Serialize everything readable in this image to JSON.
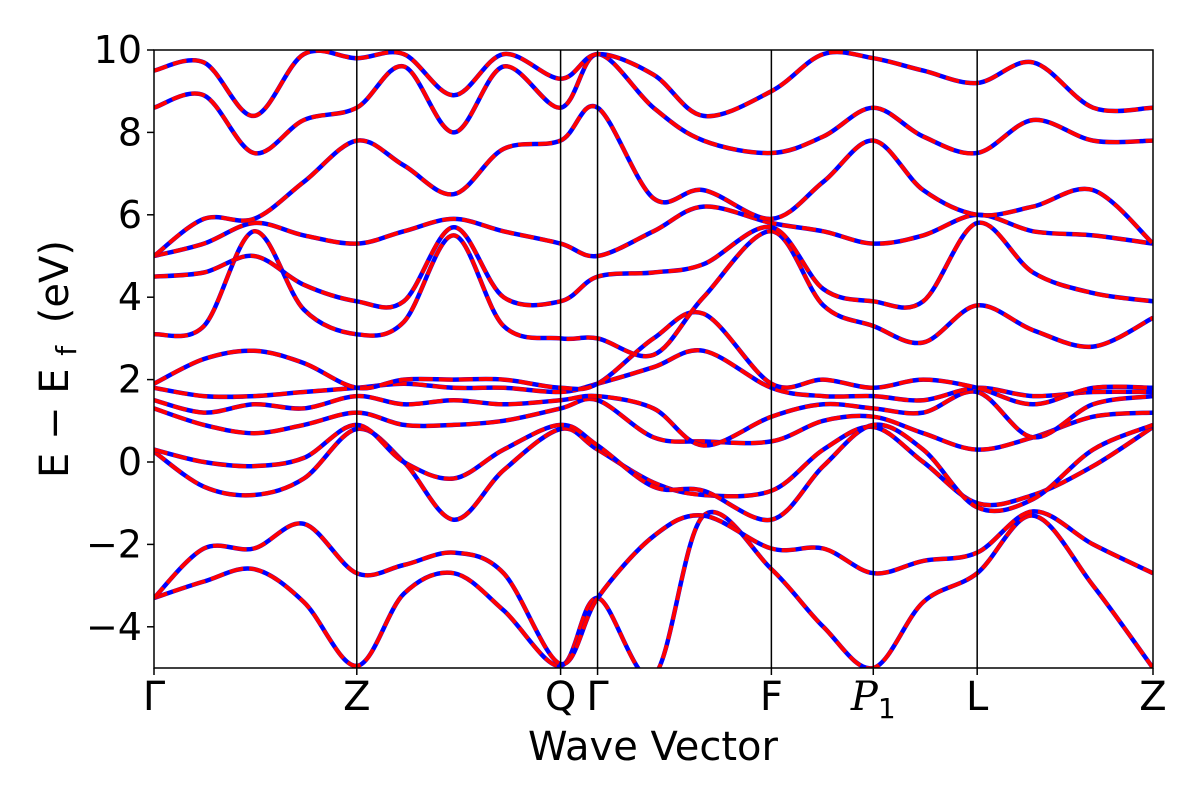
{
  "chart_data": {
    "type": "line",
    "title": "",
    "xlabel": "Wave Vector",
    "ylabel": "E − E",
    "ylabel_sub": "f",
    "ylabel_unit": "(eV)",
    "ylim": [
      -5,
      10
    ],
    "yticks": [
      -4,
      -2,
      0,
      2,
      4,
      6,
      8,
      10
    ],
    "ytick_labels": [
      "−4",
      "−2",
      "0",
      "2",
      "4",
      "6",
      "8",
      "10"
    ],
    "xlim": [
      0,
      10
    ],
    "high_symmetry_points": [
      {
        "label": "Γ",
        "sub": "",
        "x": 0.0
      },
      {
        "label": "Z",
        "sub": "",
        "x": 2.03
      },
      {
        "label": "Q",
        "sub": "",
        "x": 4.07
      },
      {
        "label": "Γ",
        "sub": "",
        "x": 4.44
      },
      {
        "label": "F",
        "sub": "",
        "x": 6.18
      },
      {
        "label": "P",
        "sub": "1",
        "x": 7.2
      },
      {
        "label": "L",
        "sub": "",
        "x": 8.24
      },
      {
        "label": "Z",
        "sub": "",
        "x": 10.0
      }
    ],
    "grid": false,
    "series_styles": [
      {
        "color": "#0000ff",
        "dash": "solid"
      },
      {
        "color": "#ff0000",
        "dash": "dashed"
      }
    ],
    "bands": [
      {
        "x": [
          0,
          0.5,
          1.0,
          1.5,
          2.03,
          2.5,
          3.0,
          3.5,
          4.07,
          4.44,
          5.0,
          5.5,
          6.18,
          6.7,
          7.2,
          7.7,
          8.24,
          8.8,
          9.4,
          10.0
        ],
        "y": [
          -3.3,
          -2.9,
          -2.6,
          -3.4,
          -4.95,
          -3.2,
          -2.7,
          -3.6,
          -4.95,
          -3.3,
          -5.2,
          -1.3,
          -2.6,
          -4.0,
          -5.0,
          -3.4,
          -2.7,
          -1.3,
          -3.0,
          -5.0
        ]
      },
      {
        "x": [
          0,
          0.5,
          1.0,
          1.5,
          2.03,
          2.5,
          3.0,
          3.5,
          4.07,
          4.44,
          5.0,
          5.5,
          6.18,
          6.7,
          7.2,
          7.7,
          8.24,
          8.8,
          9.4,
          10.0
        ],
        "y": [
          -3.3,
          -2.1,
          -2.1,
          -1.5,
          -2.7,
          -2.5,
          -2.2,
          -2.7,
          -4.9,
          -3.3,
          -1.8,
          -1.3,
          -2.1,
          -2.1,
          -2.7,
          -2.4,
          -2.2,
          -1.2,
          -2.0,
          -2.7
        ]
      },
      {
        "x": [
          0,
          0.5,
          1.0,
          1.5,
          2.03,
          2.5,
          3.0,
          3.5,
          4.07,
          4.44,
          5.0,
          5.5,
          6.18,
          6.7,
          7.2,
          7.7,
          8.24,
          8.8,
          9.4,
          10.0
        ],
        "y": [
          0.25,
          -0.6,
          -0.8,
          -0.4,
          0.8,
          0.0,
          -1.4,
          -0.2,
          0.8,
          0.3,
          -0.5,
          -0.8,
          -0.7,
          0.3,
          0.85,
          0.0,
          -1.0,
          -0.8,
          -0.1,
          0.85
        ]
      },
      {
        "x": [
          0,
          0.5,
          1.0,
          1.5,
          2.03,
          2.5,
          3.0,
          3.5,
          4.07,
          4.44,
          5.0,
          5.5,
          6.18,
          6.7,
          7.2,
          7.7,
          8.24,
          8.8,
          9.4,
          10.0
        ],
        "y": [
          0.3,
          0.0,
          -0.1,
          0.1,
          0.9,
          0.0,
          -0.4,
          0.3,
          0.9,
          0.4,
          -0.6,
          -0.7,
          -1.4,
          -0.1,
          0.9,
          0.3,
          -1.1,
          -0.9,
          0.3,
          0.9
        ]
      },
      {
        "x": [
          0,
          0.5,
          1.0,
          1.5,
          2.03,
          2.5,
          3.0,
          3.5,
          4.07,
          4.44,
          5.0,
          5.5,
          6.18,
          6.7,
          7.2,
          7.7,
          8.24,
          8.8,
          9.4,
          10.0
        ],
        "y": [
          1.3,
          0.9,
          0.7,
          0.9,
          1.2,
          0.9,
          0.9,
          1.0,
          1.3,
          1.5,
          0.6,
          0.5,
          0.5,
          1.0,
          1.1,
          0.7,
          0.3,
          0.6,
          1.1,
          1.2
        ]
      },
      {
        "x": [
          0,
          0.5,
          1.0,
          1.5,
          2.03,
          2.5,
          3.0,
          3.5,
          4.07,
          4.44,
          5.0,
          5.5,
          6.18,
          6.7,
          7.2,
          7.7,
          8.24,
          8.8,
          9.4,
          10.0
        ],
        "y": [
          1.5,
          1.2,
          1.4,
          1.3,
          1.6,
          1.4,
          1.5,
          1.4,
          1.5,
          1.6,
          1.3,
          0.4,
          1.1,
          1.4,
          1.3,
          1.2,
          1.7,
          0.6,
          1.4,
          1.6
        ]
      },
      {
        "x": [
          0,
          0.5,
          1.0,
          1.5,
          2.03,
          2.5,
          3.0,
          3.5,
          4.07,
          4.44,
          5.0,
          5.5,
          6.18,
          6.7,
          7.2,
          7.7,
          8.24,
          8.8,
          9.4,
          10.0
        ],
        "y": [
          1.8,
          1.6,
          1.6,
          1.7,
          1.8,
          1.9,
          1.8,
          1.8,
          1.7,
          1.9,
          2.3,
          2.7,
          1.8,
          1.6,
          1.6,
          1.5,
          1.8,
          1.6,
          1.7,
          1.7
        ]
      },
      {
        "x": [
          0,
          0.5,
          1.0,
          1.5,
          2.03,
          2.5,
          3.0,
          3.5,
          4.07,
          4.44,
          5.0,
          5.5,
          6.18,
          6.7,
          7.2,
          7.7,
          8.24,
          8.8,
          9.4,
          10.0
        ],
        "y": [
          1.9,
          2.5,
          2.7,
          2.4,
          1.8,
          2.0,
          2.0,
          2.0,
          1.8,
          1.9,
          3.0,
          3.6,
          1.9,
          2.0,
          1.8,
          2.0,
          1.8,
          1.4,
          1.8,
          1.8
        ]
      },
      {
        "x": [
          0,
          0.5,
          1.0,
          1.5,
          2.03,
          2.5,
          3.0,
          3.5,
          4.07,
          4.44,
          5.0,
          5.5,
          6.18,
          6.7,
          7.2,
          7.7,
          8.24,
          8.8,
          9.4,
          10.0
        ],
        "y": [
          3.1,
          3.3,
          5.6,
          3.7,
          3.1,
          3.4,
          5.5,
          3.3,
          3.0,
          3.0,
          2.6,
          4.0,
          5.6,
          3.8,
          3.3,
          2.9,
          3.8,
          3.2,
          2.8,
          3.5
        ]
      },
      {
        "x": [
          0,
          0.5,
          1.0,
          1.5,
          2.03,
          2.5,
          3.0,
          3.5,
          4.07,
          4.44,
          5.0,
          5.5,
          6.18,
          6.7,
          7.2,
          7.7,
          8.24,
          8.8,
          9.4,
          10.0
        ],
        "y": [
          4.5,
          4.6,
          5.0,
          4.3,
          3.9,
          3.9,
          5.7,
          4.0,
          3.9,
          4.5,
          4.6,
          4.8,
          5.7,
          4.2,
          3.9,
          3.9,
          5.8,
          4.6,
          4.1,
          3.9
        ]
      },
      {
        "x": [
          0,
          0.5,
          1.0,
          1.5,
          2.03,
          2.5,
          3.0,
          3.5,
          4.07,
          4.44,
          5.0,
          5.5,
          6.18,
          6.7,
          7.2,
          7.7,
          8.24,
          8.8,
          9.4,
          10.0
        ],
        "y": [
          5.0,
          5.3,
          5.8,
          5.5,
          5.3,
          5.6,
          5.9,
          5.6,
          5.3,
          5.0,
          5.6,
          6.2,
          5.8,
          5.6,
          5.3,
          5.5,
          6.0,
          5.6,
          5.5,
          5.3
        ]
      },
      {
        "x": [
          0,
          0.5,
          1.0,
          1.5,
          2.03,
          2.5,
          3.0,
          3.5,
          4.07,
          4.44,
          5.0,
          5.5,
          6.18,
          6.7,
          7.2,
          7.7,
          8.24,
          8.8,
          9.4,
          10.0
        ],
        "y": [
          5.0,
          5.9,
          5.9,
          6.8,
          7.8,
          7.2,
          6.5,
          7.6,
          7.8,
          8.6,
          6.4,
          6.6,
          5.9,
          6.8,
          7.8,
          6.6,
          6.0,
          6.2,
          6.6,
          5.3
        ]
      },
      {
        "x": [
          0,
          0.5,
          1.0,
          1.5,
          2.03,
          2.5,
          3.0,
          3.5,
          4.07,
          4.44,
          5.0,
          5.5,
          6.18,
          6.7,
          7.2,
          7.7,
          8.24,
          8.8,
          9.4,
          10.0
        ],
        "y": [
          8.6,
          8.9,
          7.5,
          8.3,
          8.6,
          9.6,
          8.0,
          9.6,
          8.6,
          9.9,
          8.6,
          7.8,
          7.5,
          7.9,
          8.6,
          7.9,
          7.5,
          8.3,
          7.8,
          7.8
        ]
      },
      {
        "x": [
          0,
          0.5,
          1.0,
          1.5,
          2.03,
          2.5,
          3.0,
          3.5,
          4.07,
          4.44,
          5.0,
          5.5,
          6.18,
          6.7,
          7.2,
          7.7,
          8.24,
          8.8,
          9.4,
          10.0
        ],
        "y": [
          9.5,
          9.7,
          8.4,
          9.9,
          9.8,
          9.9,
          8.9,
          9.9,
          9.3,
          9.9,
          9.4,
          8.4,
          9.0,
          9.9,
          9.8,
          9.5,
          9.2,
          9.7,
          8.6,
          8.6
        ]
      }
    ]
  }
}
